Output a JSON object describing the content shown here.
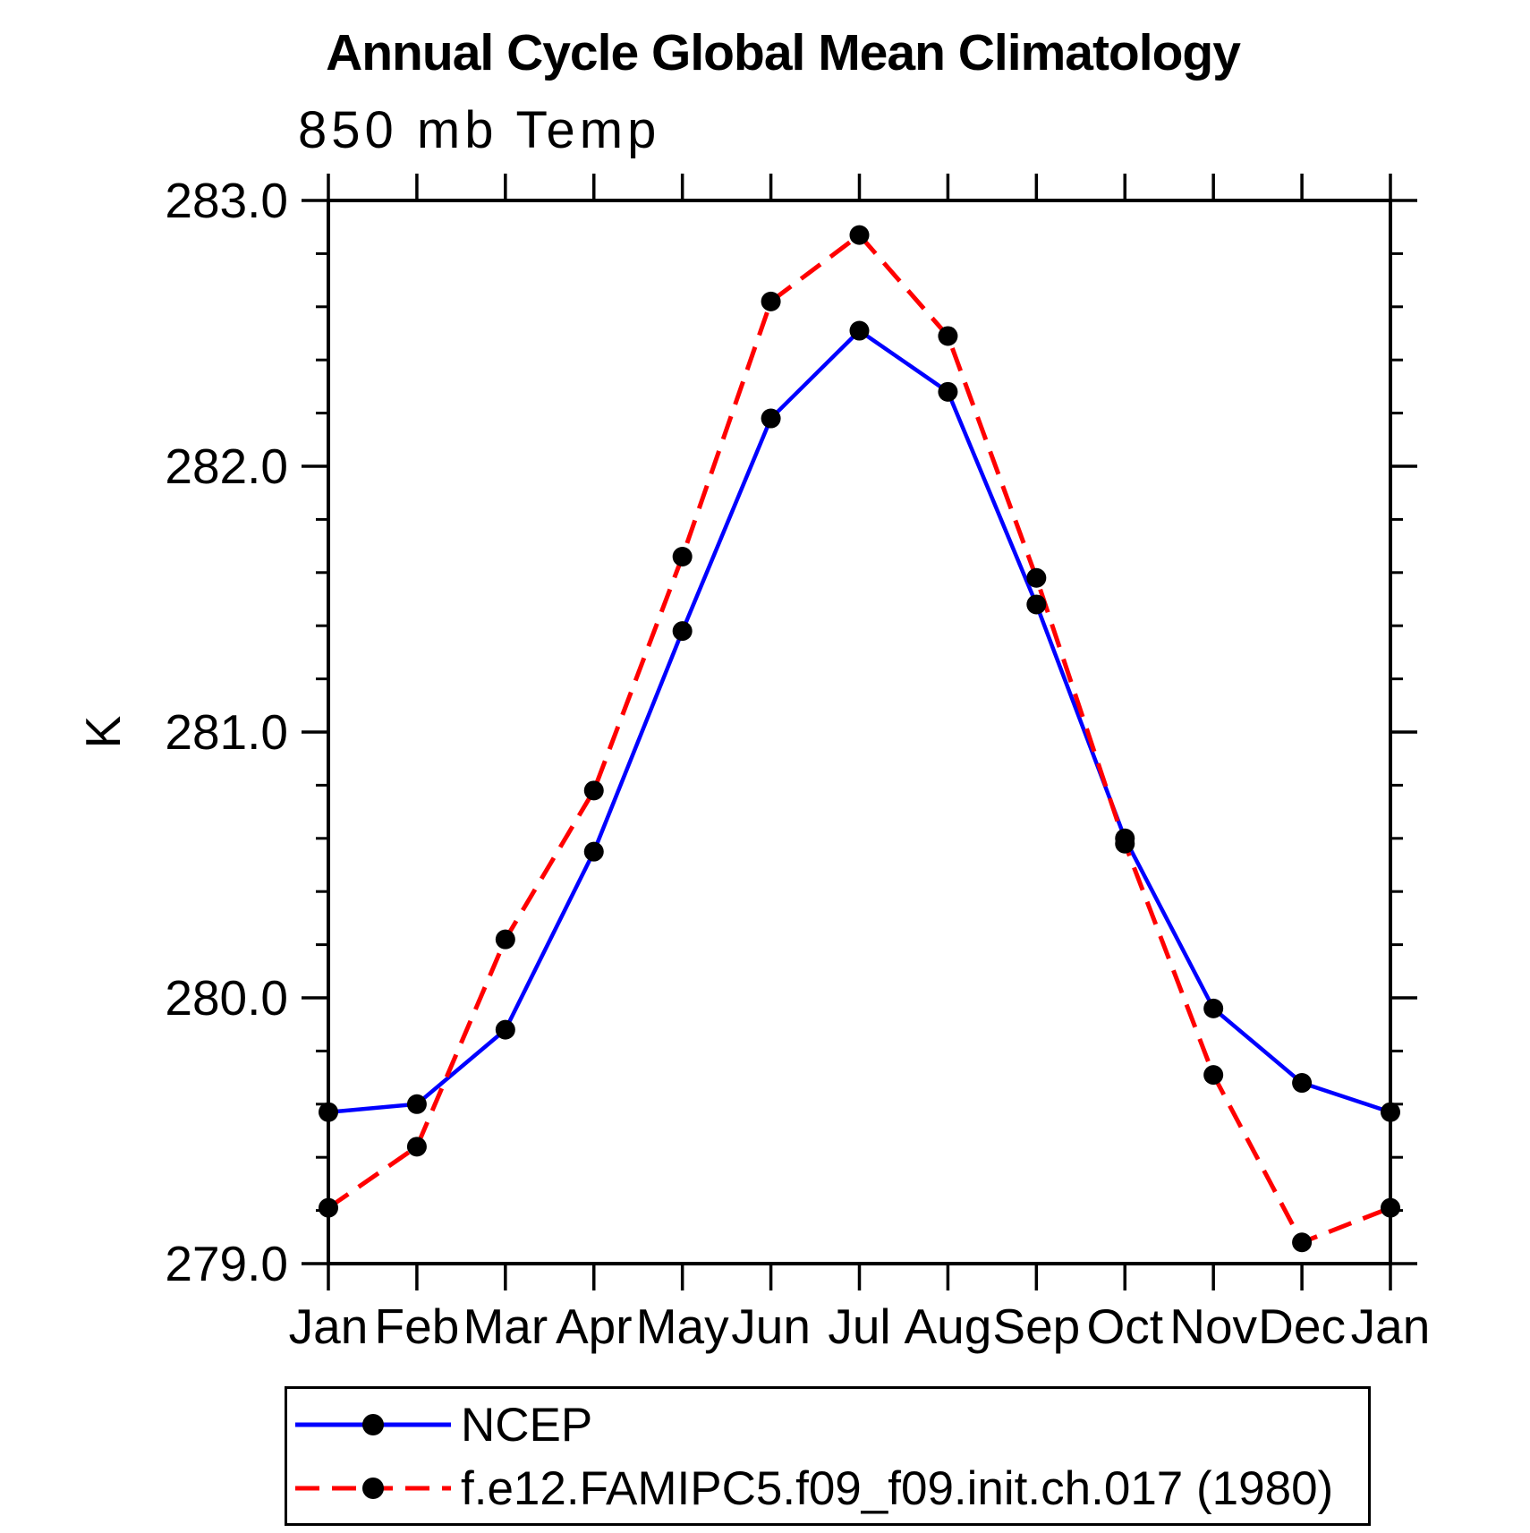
{
  "title": "Annual Cycle Global Mean Climatology",
  "subtitle": "850 mb Temp",
  "y_axis_title": "K",
  "legend": {
    "items": [
      {
        "label": "NCEP"
      },
      {
        "label": "f.e12.FAMIPC5.f09_f09.init.ch.017 (1980)"
      }
    ]
  },
  "chart_data": {
    "type": "line",
    "title": "Annual Cycle Global Mean Climatology",
    "subtitle": "850 mb Temp",
    "ylabel": "K",
    "xlabel": "",
    "categories": [
      "Jan",
      "Feb",
      "Mar",
      "Apr",
      "May",
      "Jun",
      "Jul",
      "Aug",
      "Sep",
      "Oct",
      "Nov",
      "Dec",
      "Jan"
    ],
    "series": [
      {
        "name": "NCEP",
        "color": "#0000ff",
        "line_style": "solid",
        "marker": "circle",
        "values": [
          279.57,
          279.6,
          279.88,
          280.55,
          281.38,
          282.18,
          282.51,
          282.28,
          281.48,
          280.6,
          279.96,
          279.68,
          279.57
        ]
      },
      {
        "name": "f.e12.FAMIPC5.f09_f09.init.ch.017 (1980)",
        "color": "#ff0000",
        "line_style": "dashed",
        "marker": "circle",
        "values": [
          279.21,
          279.44,
          280.22,
          280.78,
          281.66,
          282.62,
          282.87,
          282.49,
          281.58,
          280.58,
          279.71,
          279.08,
          279.21
        ]
      }
    ],
    "ylim": [
      279.0,
      283.0
    ],
    "ytick_major": [
      279.0,
      280.0,
      281.0,
      282.0,
      283.0
    ],
    "ytick_labels": [
      "279.0",
      "280.0",
      "281.0",
      "282.0",
      "283.0"
    ],
    "ytick_minor_step": 0.2,
    "marker_color": "#000000",
    "grid": false,
    "legend_position": "bottom"
  }
}
